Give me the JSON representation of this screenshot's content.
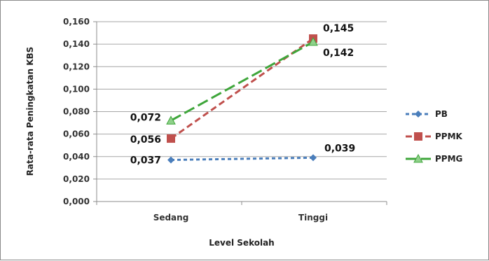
{
  "chart_data": {
    "type": "line",
    "title": "",
    "xlabel": "Level Sekolah",
    "ylabel": "Rata-rata Peningkatan KBS",
    "categories": [
      "Sedang",
      "Tinggi"
    ],
    "ylim": [
      0,
      0.16
    ],
    "yticks": [
      "0,000",
      "0,020",
      "0,040",
      "0,060",
      "0,080",
      "0,100",
      "0,120",
      "0,140",
      "0,160"
    ],
    "grid": true,
    "legend_position": "right",
    "series": [
      {
        "name": "PB",
        "values": [
          0.037,
          0.039
        ],
        "labels": [
          "0,037",
          "0,039"
        ],
        "color": "#4a7ebb",
        "marker": "diamond",
        "dash": "5,4"
      },
      {
        "name": "PPMK",
        "values": [
          0.056,
          0.145
        ],
        "labels": [
          "0,056",
          "0,145"
        ],
        "color": "#c0504d",
        "marker": "square",
        "dash": "9,5"
      },
      {
        "name": "PPMG",
        "values": [
          0.072,
          0.142
        ],
        "labels": [
          "0,072",
          "0,142"
        ],
        "color": "#3fa63b",
        "marker": "triangle",
        "dash": "16,6"
      }
    ]
  }
}
